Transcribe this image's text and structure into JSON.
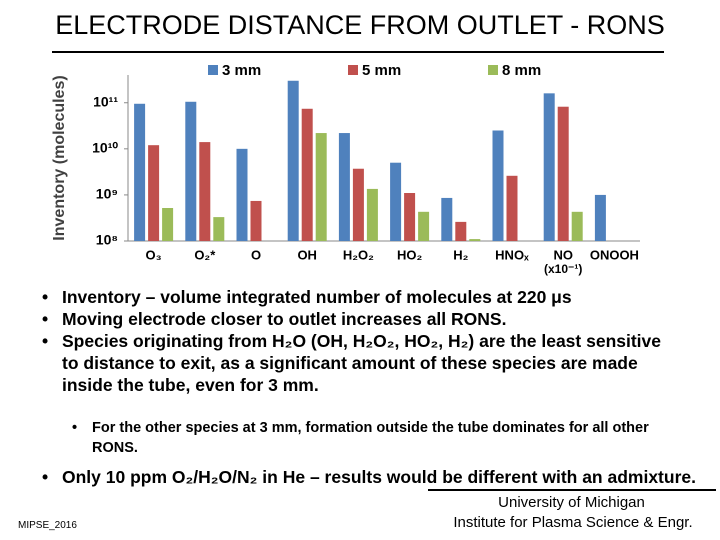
{
  "title": "ELECTRODE DISTANCE FROM OUTLET - RONS",
  "chart_data": {
    "type": "bar",
    "ylabel": "Inventory (molecules)",
    "log_scale": true,
    "grid": false,
    "categories": [
      "O₃",
      "O₂*",
      "O",
      "OH",
      "H₂O₂",
      "HO₂",
      "H₂",
      "HNOₓ",
      "NO",
      "ONOOH"
    ],
    "note": "(x10⁻¹)",
    "series": [
      {
        "name": "3 mm",
        "color": "#4f81bd",
        "values": [
          95000000000,
          105000000000,
          10000000000,
          300000000000,
          22000000000,
          5000000000,
          860000000,
          25000000000,
          160000000000,
          1000000000
        ]
      },
      {
        "name": "5 mm",
        "color": "#c0504d",
        "values": [
          12000000000,
          14000000000,
          740000000,
          74000000000,
          3700000000,
          1100000000,
          260000000,
          2600000000,
          82000000000,
          null
        ]
      },
      {
        "name": "8 mm",
        "color": "#9bbb59",
        "values": [
          520000000,
          330000000,
          null,
          22000000000,
          1350000000,
          430000000,
          110000000,
          null,
          430000000,
          null
        ]
      }
    ],
    "ylim": [
      100000000,
      400000000000
    ],
    "yticks": [
      {
        "value": 100000000,
        "label": "10⁸"
      },
      {
        "value": 1000000000,
        "label": "10⁹"
      },
      {
        "value": 10000000000,
        "label": "10¹⁰"
      },
      {
        "value": 100000000000,
        "label": "10¹¹"
      }
    ],
    "legend": "top"
  },
  "bullets": [
    "Inventory – volume integrated number of molecules at 220 μs",
    "Moving electrode closer to outlet increases all RONS.",
    "Species originating from H₂O (OH, H₂O₂, HO₂, H₂) are the least sensitive to distance to exit, as a significant amount of these species are made inside the tube, even for 3 mm."
  ],
  "sub_bullets": [
    "For the other species at 3 mm, formation outside the tube dominates for all other RONS."
  ],
  "closing_bullet": "Only 10 ppm O₂/H₂O/N₂ in He – results would be different with an admixture.",
  "footer": {
    "event": "MIPSE_2016",
    "affiliation": [
      "University of Michigan",
      "Institute for Plasma Science & Engr."
    ]
  }
}
